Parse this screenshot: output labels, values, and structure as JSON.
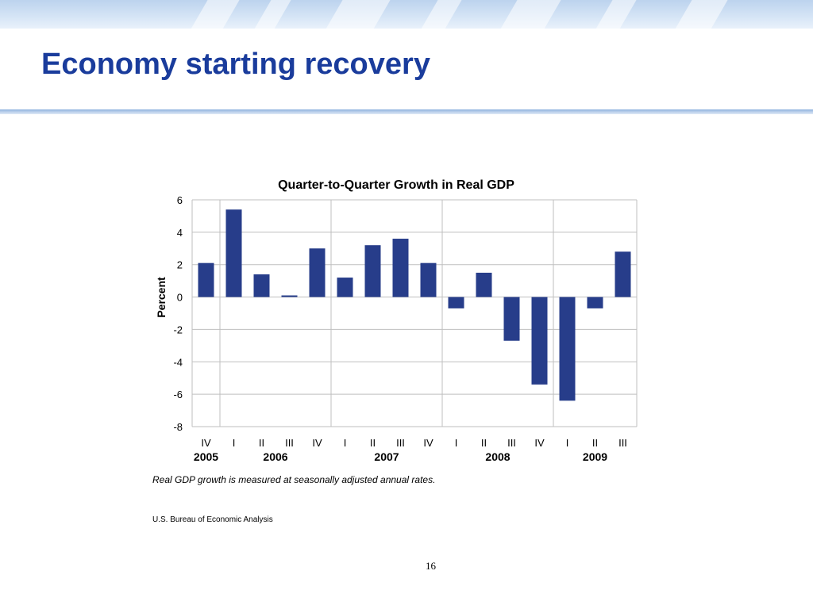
{
  "slide": {
    "title": "Economy starting recovery",
    "page_number": "16"
  },
  "colors": {
    "title": "#1a3c9c",
    "bar": "#273d8a",
    "grid": "#bfbfbf"
  },
  "chart_data": {
    "type": "bar",
    "title": "Quarter-to-Quarter Growth in Real GDP",
    "ylabel": "Percent",
    "xlabel": "",
    "ylim": [
      -8,
      6
    ],
    "yticks": [
      6,
      4,
      2,
      0,
      -2,
      -4,
      -6,
      -8
    ],
    "grid": true,
    "categories": [
      "IV",
      "I",
      "II",
      "III",
      "IV",
      "I",
      "II",
      "III",
      "IV",
      "I",
      "II",
      "III",
      "IV",
      "I",
      "II",
      "III"
    ],
    "years": [
      {
        "label": "2005",
        "start": 0,
        "end": 0
      },
      {
        "label": "2006",
        "start": 1,
        "end": 4
      },
      {
        "label": "2007",
        "start": 5,
        "end": 8
      },
      {
        "label": "2008",
        "start": 9,
        "end": 12
      },
      {
        "label": "2009",
        "start": 13,
        "end": 15
      }
    ],
    "values": [
      2.1,
      5.4,
      1.4,
      0.1,
      3.0,
      1.2,
      3.2,
      3.6,
      2.1,
      -0.7,
      1.5,
      -2.7,
      -5.4,
      -6.4,
      -0.7,
      2.8
    ],
    "note": "Real GDP growth is measured at seasonally adjusted annual rates.",
    "source": "U.S. Bureau of Economic Analysis"
  }
}
